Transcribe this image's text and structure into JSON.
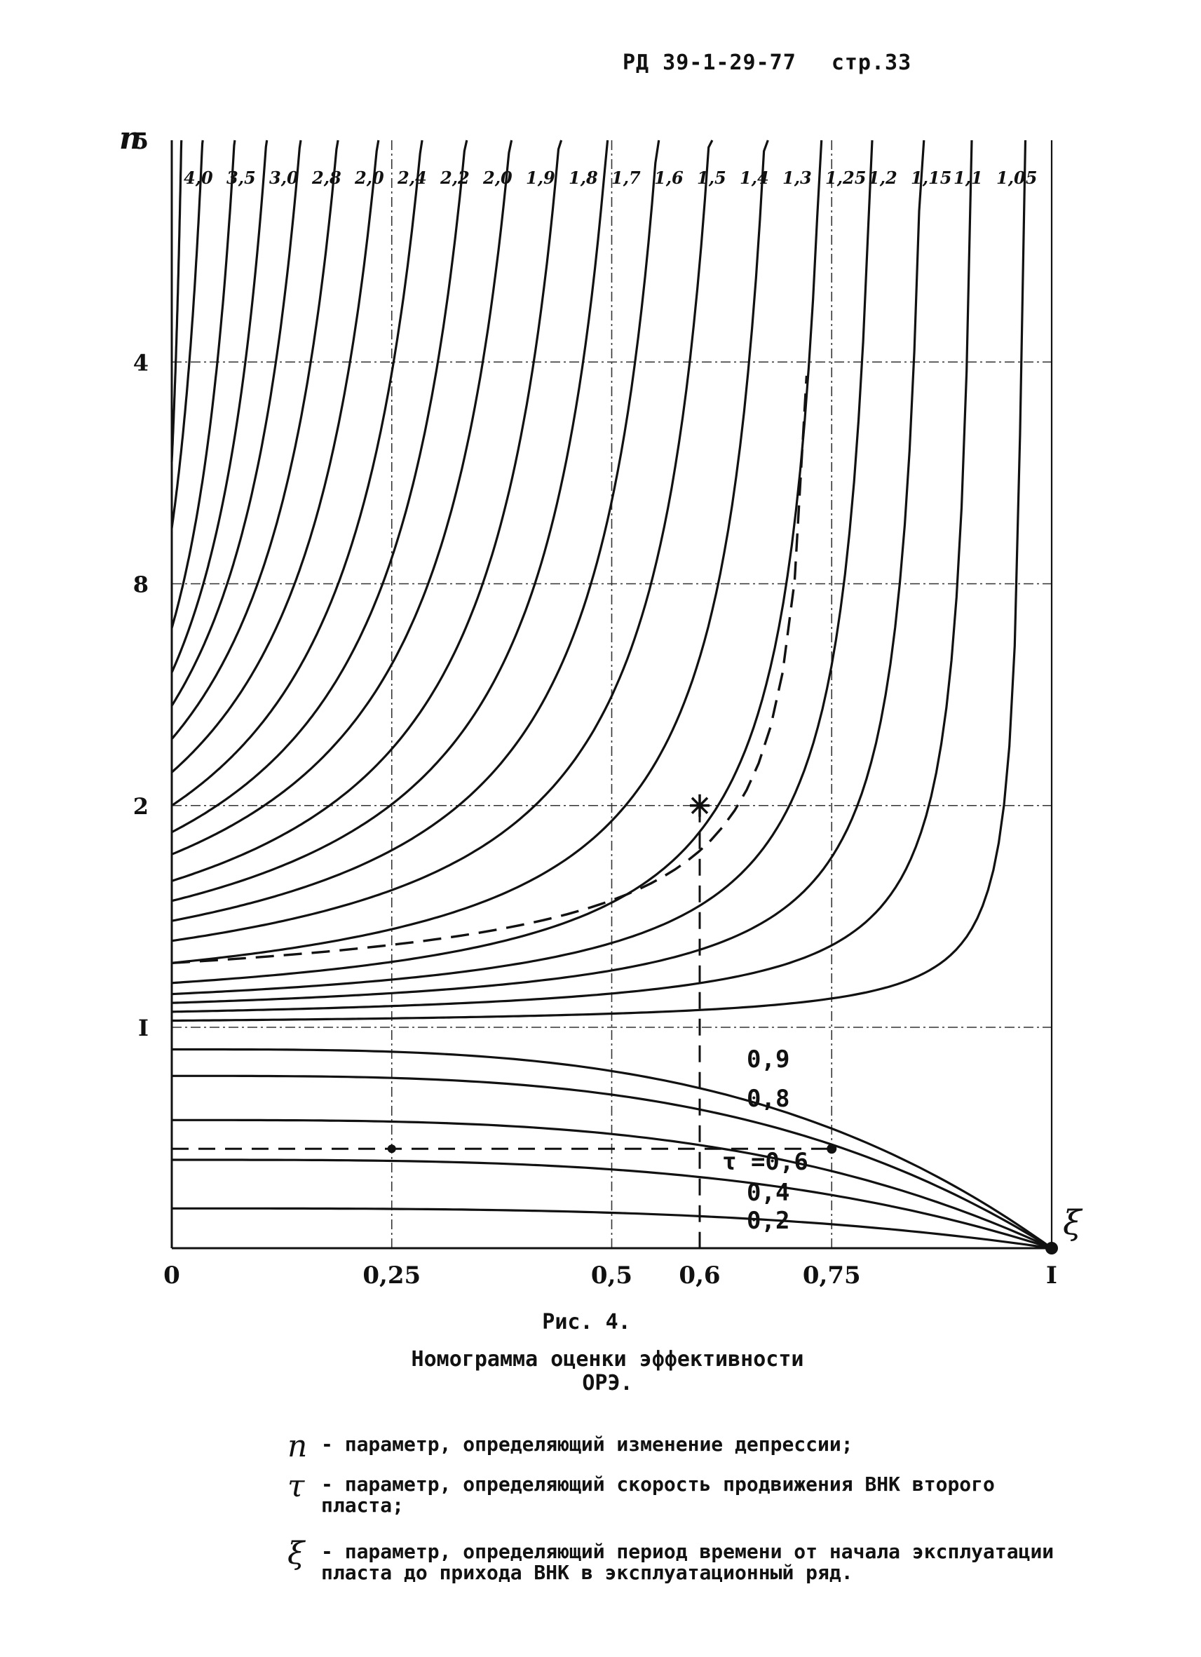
{
  "header": {
    "doc_code": "РД 39-1-29-77",
    "page": "стр.33"
  },
  "chart_data": {
    "type": "line",
    "title": "",
    "xlabel": "ξ",
    "ylabel": "n",
    "x_ticks": [
      "0",
      "0,25",
      "0,5",
      "0,6",
      "0,75",
      "I"
    ],
    "y_ticks": [
      "I",
      "2",
      "8",
      "4",
      "5"
    ],
    "xlim": [
      0,
      1
    ],
    "ylim_lower_panel": [
      0,
      1
    ],
    "ylim_upper_panel": [
      1,
      5
    ],
    "grid": true,
    "upper_curves": [
      {
        "name": "4,0",
        "n0": 3.55
      },
      {
        "name": "3,5",
        "n0": 3.25
      },
      {
        "name": "3,0",
        "n0": 2.8
      },
      {
        "name": "2,8",
        "n0": 2.6
      },
      {
        "name": "2,0",
        "n0": 2.45
      },
      {
        "name": "2,4",
        "n0": 2.3
      },
      {
        "name": "2,2",
        "n0": 2.15
      },
      {
        "name": "2,0",
        "n0": 2.0
      },
      {
        "name": "1,9",
        "n0": 1.88
      },
      {
        "name": "1,8",
        "n0": 1.78
      },
      {
        "name": "1,7",
        "n0": 1.66
      },
      {
        "name": "1,6",
        "n0": 1.57
      },
      {
        "name": "1,5",
        "n0": 1.48
      },
      {
        "name": "1,4",
        "n0": 1.39
      },
      {
        "name": "1,3",
        "n0": 1.29
      },
      {
        "name": "1,25",
        "n0": 1.2
      },
      {
        "name": "1,2",
        "n0": 1.15
      },
      {
        "name": "1,15",
        "n0": 1.11
      },
      {
        "name": "1,1",
        "n0": 1.07
      },
      {
        "name": "1,05",
        "n0": 1.03
      }
    ],
    "lower_curves": [
      {
        "name": "0,9",
        "n0": 0.9
      },
      {
        "name": "0,8",
        "n0": 0.78
      },
      {
        "name": "τ =0,6",
        "n0": 0.58
      },
      {
        "name": "0,4",
        "n0": 0.4
      },
      {
        "name": "0,2",
        "n0": 0.18
      }
    ],
    "example": {
      "xi": 0.6,
      "n": 2.0,
      "n0_dashed_upper": 1.29,
      "n_dashed_lower": 0.45,
      "xi_marker": 0.75
    },
    "y_axis_label": "n",
    "x_axis_label": "ξ"
  },
  "caption": {
    "figure": "Рис. 4.",
    "title_line1": "Номограмма оценки эффективности",
    "title_line2": "ОРЭ."
  },
  "legend": [
    {
      "symbol": "n",
      "text": "- параметр, определяющий изменение депрессии;"
    },
    {
      "symbol": "τ",
      "text": "- параметр, определяющий скорость продвижения ВНК второго пласта;"
    },
    {
      "symbol": "ξ",
      "text": "- параметр, определяющий период времени от начала эксплуатации пласта до прихода ВНК в эксплуатационный ряд."
    }
  ]
}
